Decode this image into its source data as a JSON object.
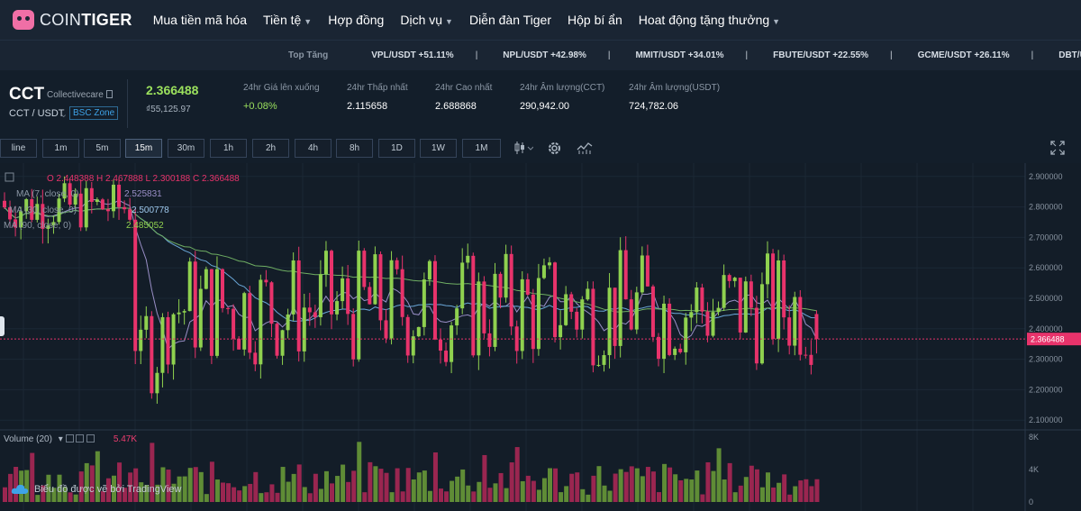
{
  "nav": {
    "logo_bold": "COIN",
    "logo_rest": "TIGER",
    "items": [
      {
        "label": "Mua tiền mã hóa",
        "caret": false
      },
      {
        "label": "Tiền tệ",
        "caret": true
      },
      {
        "label": "Hợp đồng",
        "caret": false
      },
      {
        "label": "Dịch vụ",
        "caret": true
      },
      {
        "label": "Diễn đàn Tiger",
        "caret": false
      },
      {
        "label": "Hộp bí ẩn",
        "caret": false
      },
      {
        "label": "Hoat động tặng thưởng",
        "caret": true
      }
    ]
  },
  "ticker": {
    "label": "Top Tăng",
    "items": [
      "VPL/USDT +51.11%",
      "NPL/USDT +42.98%",
      "MMIT/USDT +34.01%",
      "FBUTE/USDT +22.55%",
      "GCME/USDT +26.11%",
      "DBT/USDT"
    ],
    "separator": "|"
  },
  "info": {
    "symbol": "CCT",
    "name": "Collectivecare",
    "pair": "CCT / USDT",
    "zone": "BSC Zone",
    "last_price": "2.366488",
    "last_sub": "₫55,125.97",
    "stats": [
      {
        "label": "24hr Giá lên xuống",
        "value": "+0.08%",
        "color": "#9be15d"
      },
      {
        "label": "24hr Thấp nhất",
        "value": "2.115658",
        "color": "#ffffff"
      },
      {
        "label": "24hr Cao nhất",
        "value": "2.688868",
        "color": "#ffffff"
      },
      {
        "label": "24hr Âm lượng(CCT)",
        "value": "290,942.00",
        "color": "#ffffff"
      },
      {
        "label": "24hr Âm lượng(USDT)",
        "value": "724,782.06",
        "color": "#ffffff"
      }
    ]
  },
  "toolbar": {
    "timeframes": [
      "line",
      "1m",
      "5m",
      "15m",
      "30m",
      "1h",
      "2h",
      "4h",
      "8h",
      "1D",
      "1W",
      "1M"
    ],
    "active": "15m",
    "icons": [
      "candle-type-icon",
      "settings-icon",
      "indicators-icon",
      "fullscreen-icon"
    ]
  },
  "legend": {
    "ohlc": "O 2.448388  H 2.467888  L 2.300188  C 2.366488",
    "ma1": "MA (7, close, 0)",
    "ma1_val": "2.525831",
    "ma2": "MA (30, close, 0)",
    "ma2_val": "2.500778",
    "ma3": "MA (90, close, 0)",
    "ma3_val": "2.485052"
  },
  "volume": {
    "label": "Volume (20)",
    "value": "5.47K",
    "axis": [
      "8K",
      "4K",
      "0"
    ]
  },
  "watermark": "Biểu đồ được vẽ bởi TradingView",
  "colors": {
    "up": "#8fd14f",
    "down": "#e8336b",
    "bg": "#131d28",
    "accent": "#3ea3e8"
  },
  "chart_data": {
    "type": "candlestick",
    "ylim": [
      2.08,
      2.92
    ],
    "y_ticks": [
      2.9,
      2.8,
      2.7,
      2.6,
      2.5,
      2.4,
      2.3,
      2.2,
      2.1
    ],
    "current_price": 2.366488,
    "volume_ylim": [
      0,
      8000
    ]
  }
}
